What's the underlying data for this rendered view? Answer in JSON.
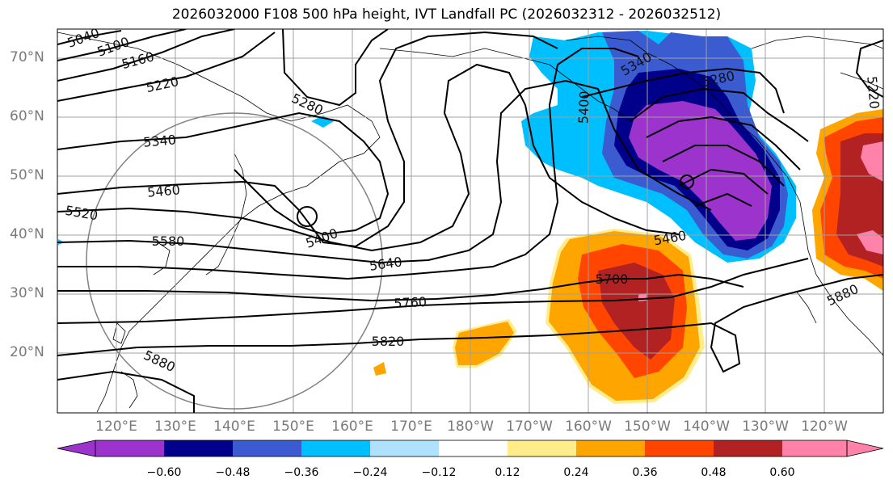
{
  "title": "2026032000 F108 500 hPa height, IVT Landfall PC (2026032312 - 2026032512)",
  "lat_labels": [
    "70°N",
    "60°N",
    "50°N",
    "40°N",
    "30°N",
    "20°N"
  ],
  "lon_labels": [
    "120°E",
    "130°E",
    "140°E",
    "150°E",
    "160°E",
    "170°E",
    "180°W",
    "170°W",
    "160°W",
    "150°W",
    "140°W",
    "130°W",
    "120°W"
  ],
  "colorbar": {
    "colors": [
      "#9b33cc",
      "#00008b",
      "#3b5bd1",
      "#00bfff",
      "#b0e2ff",
      "#ffffff",
      "#ffec8b",
      "#ffa500",
      "#ff4500",
      "#b22222",
      "#ff82ab"
    ],
    "ticks": [
      "−0.60",
      "−0.48",
      "−0.36",
      "−0.24",
      "−0.12",
      "0.12",
      "0.24",
      "0.36",
      "0.48",
      "0.60"
    ]
  },
  "contour_labels": [
    "5040",
    "5100",
    "5160",
    "5220",
    "5280",
    "5340",
    "5400",
    "5460",
    "5520",
    "5580",
    "5640",
    "5700",
    "5760",
    "5820",
    "5880",
    "5280",
    "5340",
    "5400",
    "5460",
    "5880",
    "5220"
  ],
  "colors": {
    "land": "#000000",
    "grid": "#a0a0a0",
    "circle": "#808080",
    "contour": "#000000"
  }
}
